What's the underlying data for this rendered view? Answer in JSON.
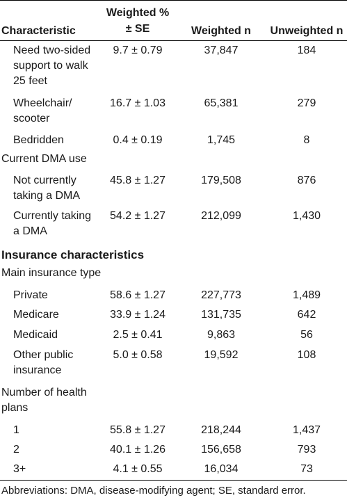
{
  "header": {
    "characteristic": "Characteristic",
    "weighted_pct_line1": "Weighted %",
    "weighted_pct_line2": "± SE",
    "weighted_n": "Weighted n",
    "unweighted_n": "Unweighted n"
  },
  "rows": [
    {
      "label": "Need two-sided support to walk 25 feet",
      "pct": "9.7 ± 0.79",
      "wn": "37,847",
      "un": "184"
    },
    {
      "label": "Wheelchair/ scooter",
      "pct": "16.7 ± 1.03",
      "wn": "65,381",
      "un": "279"
    },
    {
      "label": "Bedridden",
      "pct": "0.4 ± 0.19",
      "wn": "1,745",
      "un": "8"
    },
    {
      "label": "Current DMA use"
    },
    {
      "label": "Not currently taking a DMA",
      "pct": "45.8 ± 1.27",
      "wn": "179,508",
      "un": "876"
    },
    {
      "label": "Currently taking a DMA",
      "pct": "54.2 ± 1.27",
      "wn": "212,099",
      "un": "1,430"
    },
    {
      "label": "Insurance characteristics"
    },
    {
      "label": "Main insurance type"
    },
    {
      "label": "Private",
      "pct": "58.6 ± 1.27",
      "wn": "227,773",
      "un": "1,489"
    },
    {
      "label": "Medicare",
      "pct": "33.9 ± 1.24",
      "wn": "131,735",
      "un": "642"
    },
    {
      "label": "Medicaid",
      "pct": "2.5 ± 0.41",
      "wn": "9,863",
      "un": "56"
    },
    {
      "label": "Other public insurance",
      "pct": "5.0 ± 0.58",
      "wn": "19,592",
      "un": "108"
    },
    {
      "label": "Number of health plans"
    },
    {
      "label": "1",
      "pct": "55.8 ± 1.27",
      "wn": "218,244",
      "un": "1,437"
    },
    {
      "label": "2",
      "pct": "40.1 ± 1.26",
      "wn": "156,658",
      "un": "793"
    },
    {
      "label": "3+",
      "pct": "4.1 ± 0.55",
      "wn": "16,034",
      "un": "73"
    }
  ],
  "footnote": "Abbreviations: DMA, disease-modifying agent; SE, standard error."
}
